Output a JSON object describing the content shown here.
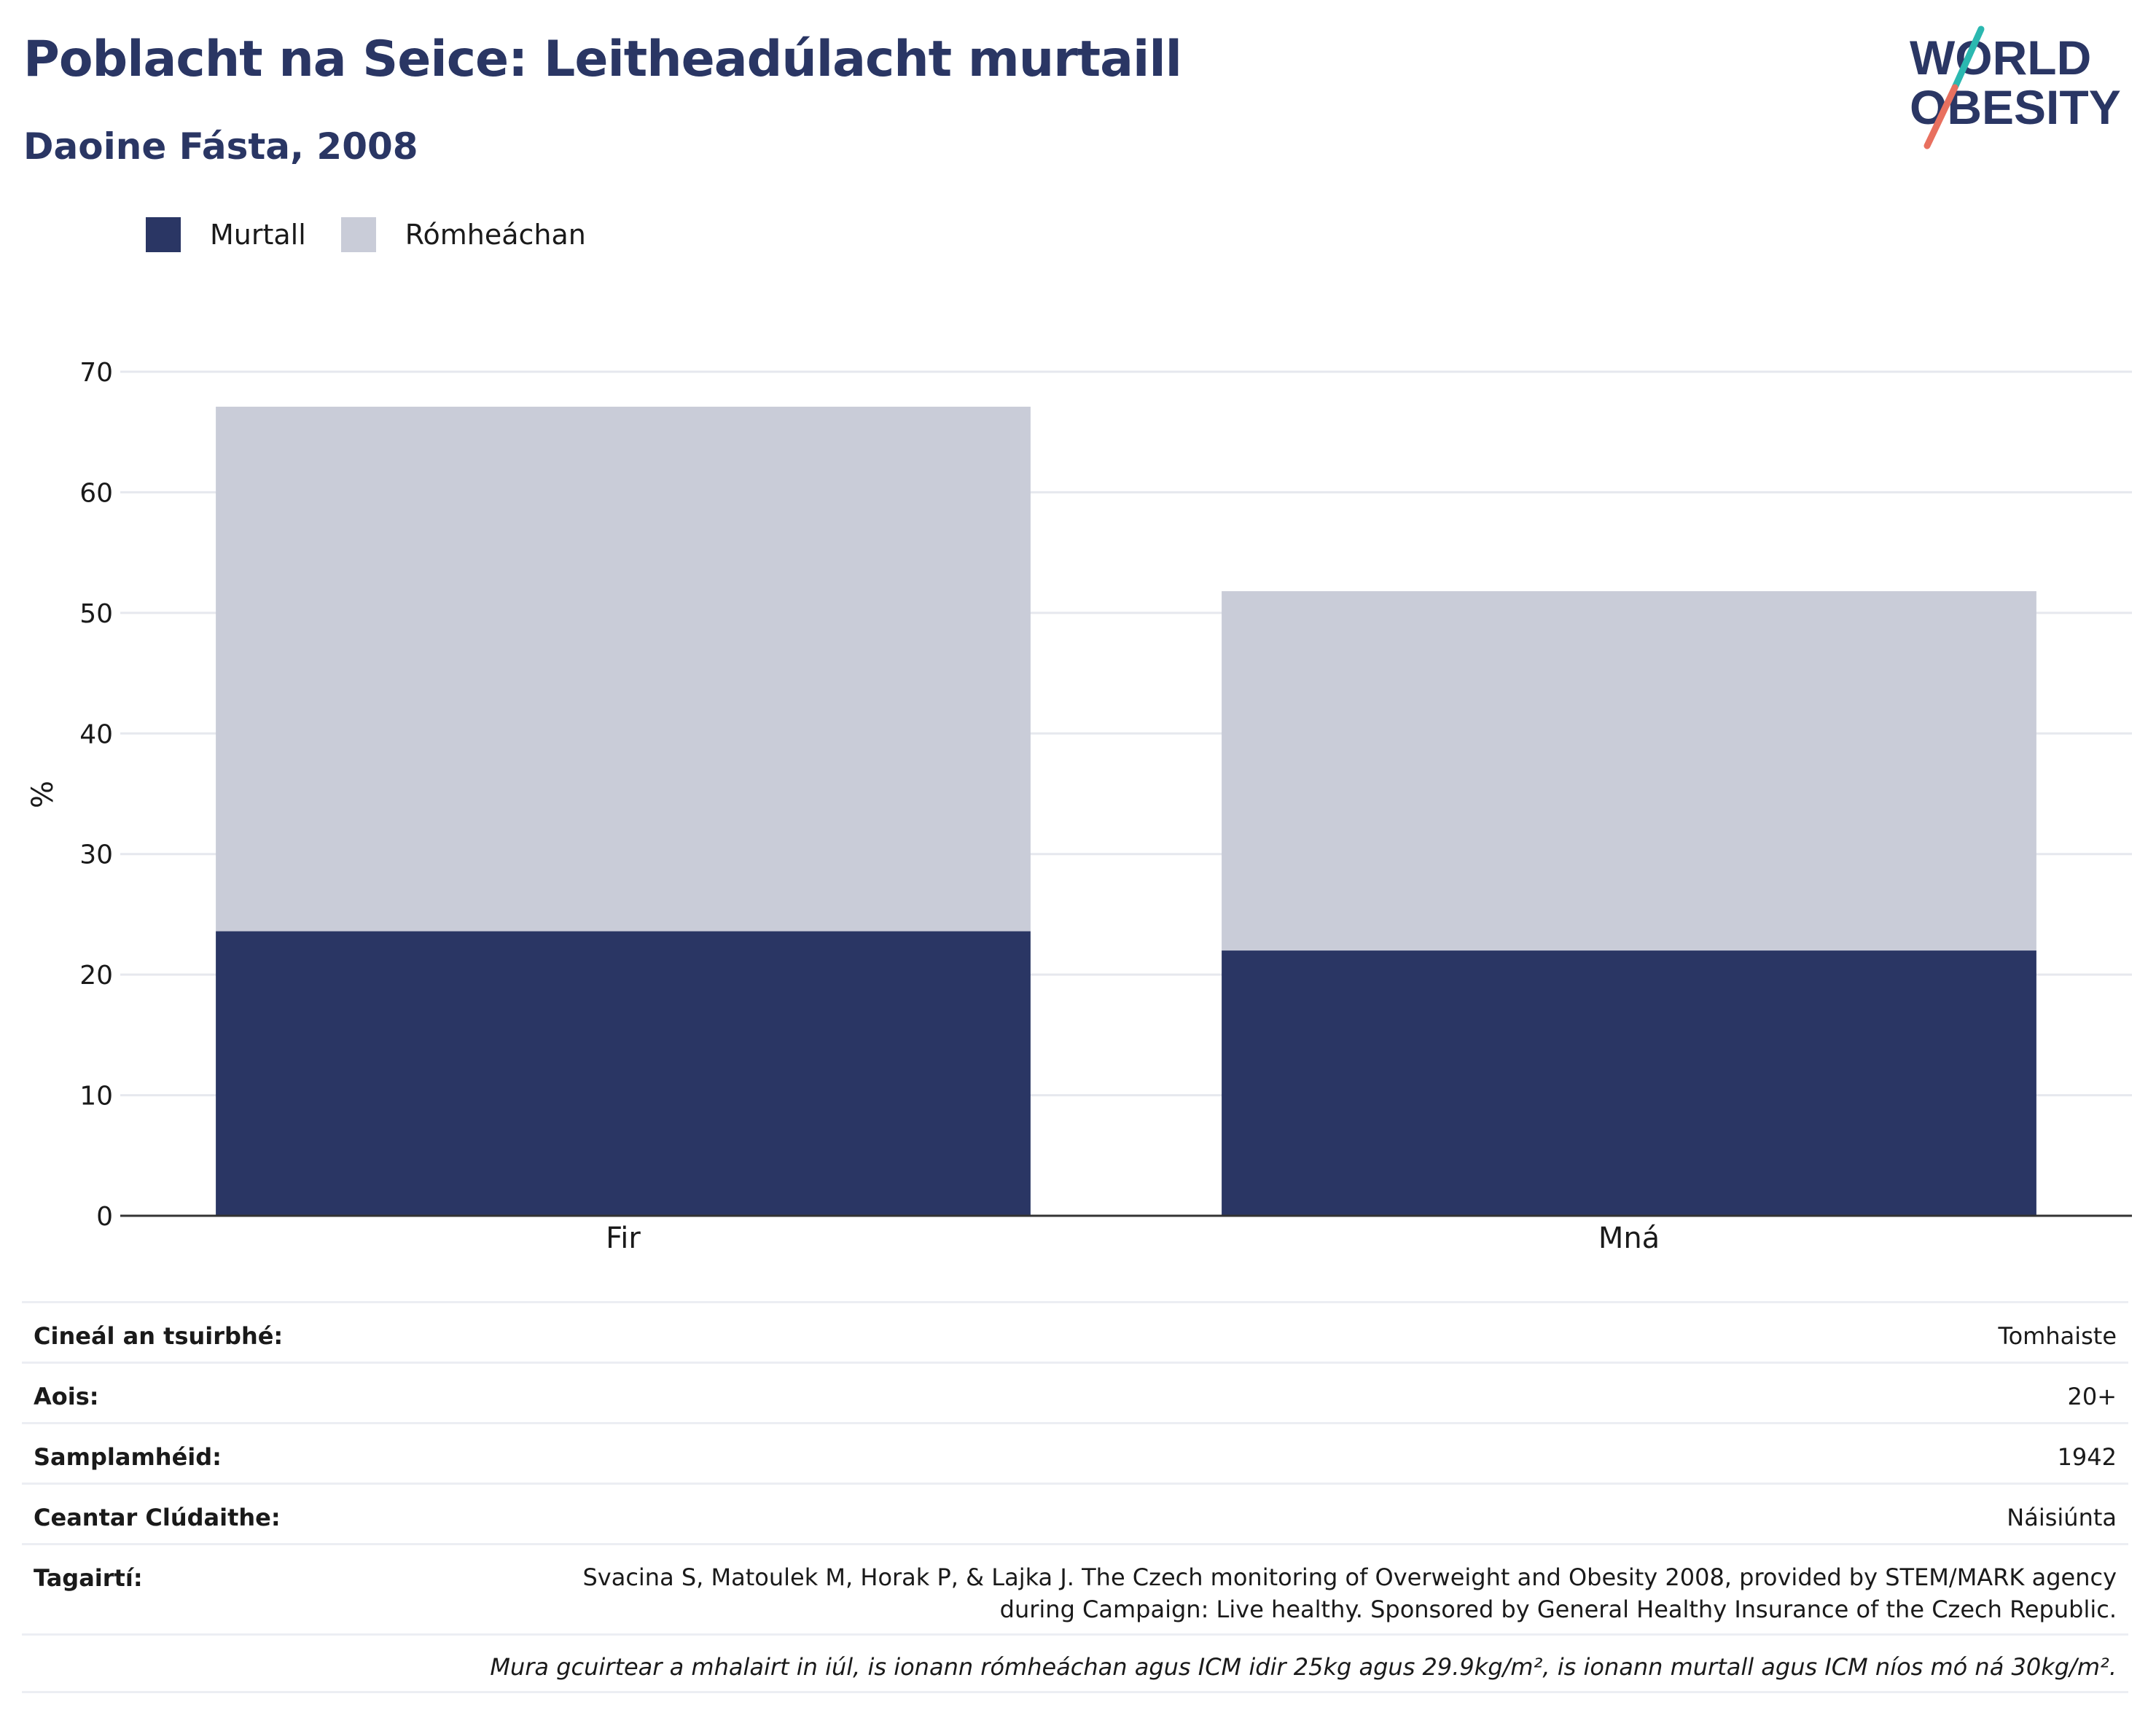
{
  "header": {
    "title": "Poblacht na Seice: Leitheadúlacht murtaill",
    "subtitle": "Daoine Fásta, 2008"
  },
  "logo": {
    "line1": "WORLD",
    "line2": "OBESITY"
  },
  "colors": {
    "obesity": "#2a3664",
    "overweight": "#c9ccd8",
    "slash_teal": "#2bb8b0",
    "slash_red": "#e8705f",
    "gridline": "#e6e8ee",
    "axis": "#333333"
  },
  "chart_data": {
    "type": "bar",
    "stacked": true,
    "categories": [
      "Fir",
      "Mná"
    ],
    "series": [
      {
        "name": "Murtall",
        "values": [
          23.6,
          22.0
        ],
        "color": "#2a3664"
      },
      {
        "name": "Rómheáchan",
        "values": [
          43.5,
          29.8
        ],
        "color": "#c9ccd8"
      }
    ],
    "ylabel": "%",
    "ylim": [
      0,
      70
    ],
    "yticks": [
      0,
      10,
      20,
      30,
      40,
      50,
      60,
      70
    ],
    "grid": true,
    "legend": "top-left"
  },
  "info": {
    "rows": [
      {
        "key": "Cineál an tsuirbhé:",
        "value": "Tomhaiste"
      },
      {
        "key": "Aois:",
        "value": "20+"
      },
      {
        "key": "Samplamhéid:",
        "value": "1942"
      },
      {
        "key": "Ceantar Clúdaithe:",
        "value": "Náisiúnta"
      },
      {
        "key": "Tagairtí:",
        "value": "Svacina S, Matoulek M, Horak P, & Lajka J. The Czech monitoring of Overweight and Obesity 2008, provided by STEM/MARK agency during Campaign: Live healthy. Sponsored by General Healthy Insurance of the Czech Republic."
      }
    ],
    "note": "Mura gcuirtear a mhalairt in iúl, is ionann rómheáchan agus ICM idir 25kg agus 29.9kg/m², is ionann murtall agus ICM níos mó ná 30kg/m²."
  }
}
